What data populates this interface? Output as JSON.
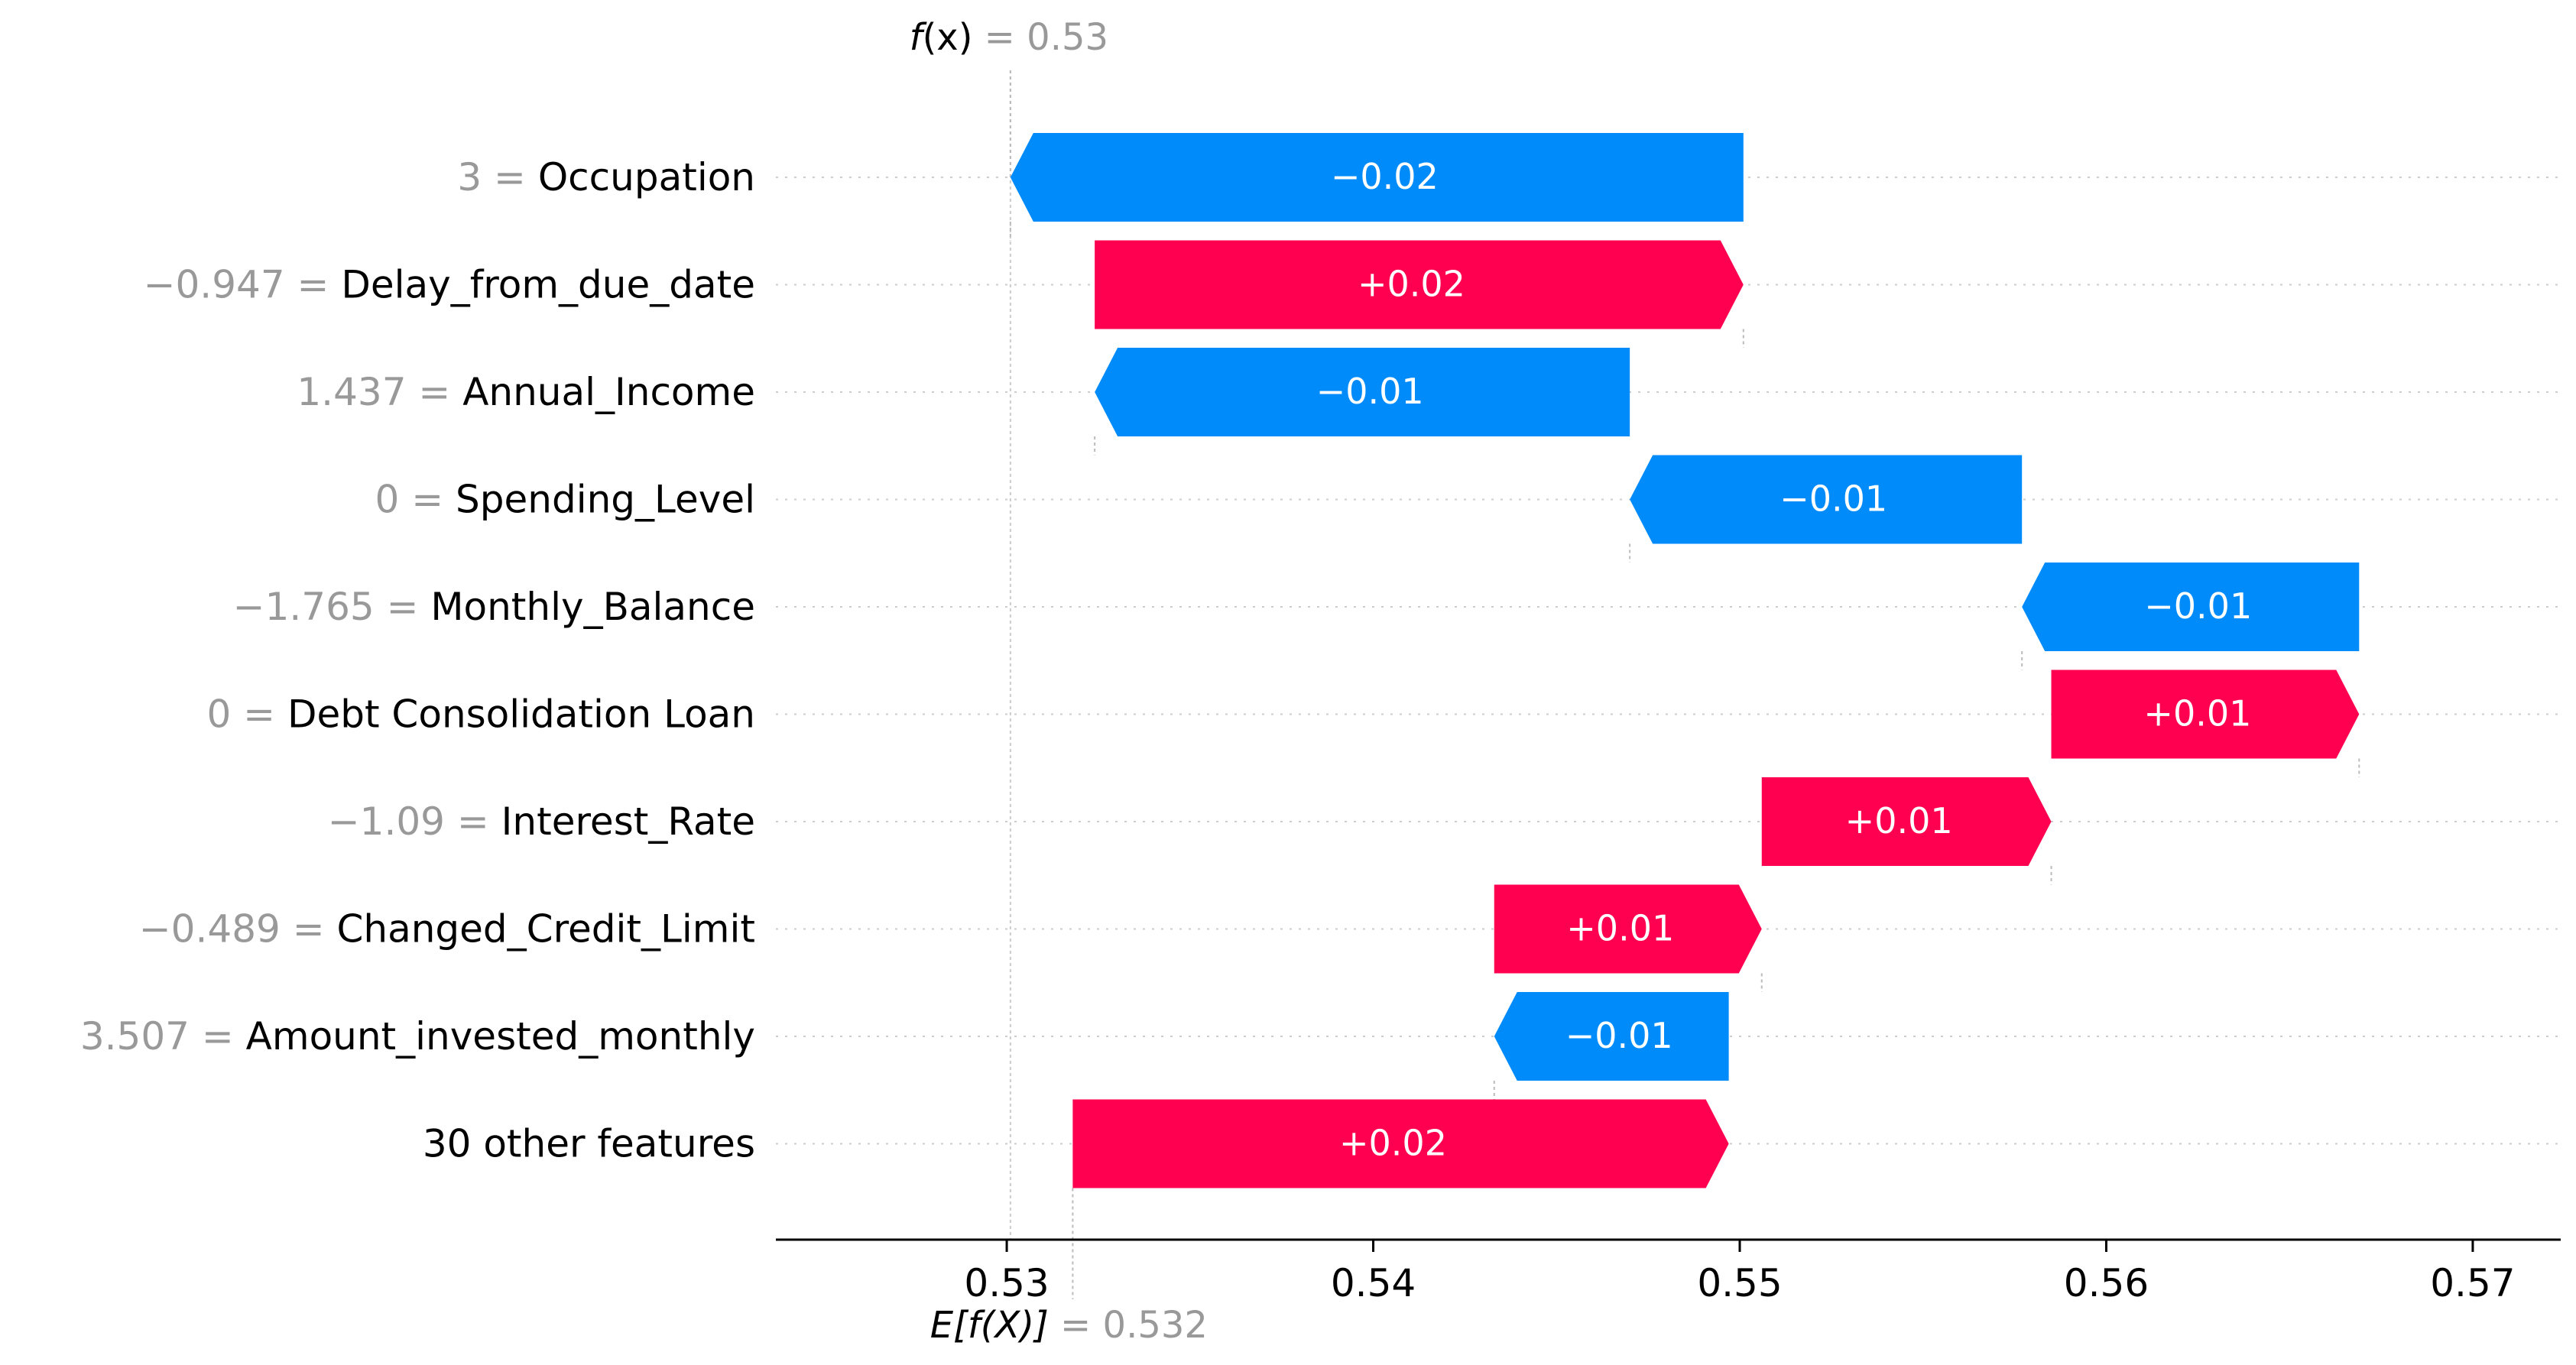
{
  "chart_data": {
    "type": "waterfall",
    "fx": {
      "label_f": "f",
      "label_rest": "(x)",
      "eq": " = 0.53",
      "value": 0.5301
    },
    "base": {
      "label_main": "E[f(X)]",
      "eq": " = 0.532",
      "value": 0.5318
    },
    "features": [
      {
        "value_label": "3",
        "name": "Occupation",
        "shap": -0.02,
        "label": "−0.02"
      },
      {
        "value_label": "−0.947",
        "name": "Delay_from_due_date",
        "shap": 0.0177,
        "label": "+0.02"
      },
      {
        "value_label": "1.437",
        "name": "Annual_Income",
        "shap": -0.0146,
        "label": "−0.01"
      },
      {
        "value_label": "0",
        "name": "Spending_Level",
        "shap": -0.0107,
        "label": "−0.01"
      },
      {
        "value_label": "−1.765",
        "name": "Monthly_Balance",
        "shap": -0.0092,
        "label": "−0.01"
      },
      {
        "value_label": "0",
        "name": "Debt Consolidation Loan",
        "shap": 0.0084,
        "label": "+0.01"
      },
      {
        "value_label": "−1.09",
        "name": "Interest_Rate",
        "shap": 0.0079,
        "label": "+0.01"
      },
      {
        "value_label": "−0.489",
        "name": "Changed_Credit_Limit",
        "shap": 0.0073,
        "label": "+0.01"
      },
      {
        "value_label": "3.507",
        "name": "Amount_invested_monthly",
        "shap": -0.0064,
        "label": "−0.01"
      },
      {
        "value_label": "",
        "name": "30 other features",
        "shap": 0.0179,
        "label": "+0.02"
      }
    ],
    "xlim": [
      0.5237,
      0.5724
    ],
    "xticks": [
      {
        "value": 0.53,
        "label": "0.53"
      },
      {
        "value": 0.54,
        "label": "0.54"
      },
      {
        "value": 0.55,
        "label": "0.55"
      },
      {
        "value": 0.56,
        "label": "0.56"
      },
      {
        "value": 0.57,
        "label": "0.57"
      }
    ],
    "colors": {
      "positive": "#ff0051",
      "negative": "#008bfb",
      "value_text": "#999999",
      "grid": "#cccccc"
    },
    "gridlines": "dotted"
  }
}
